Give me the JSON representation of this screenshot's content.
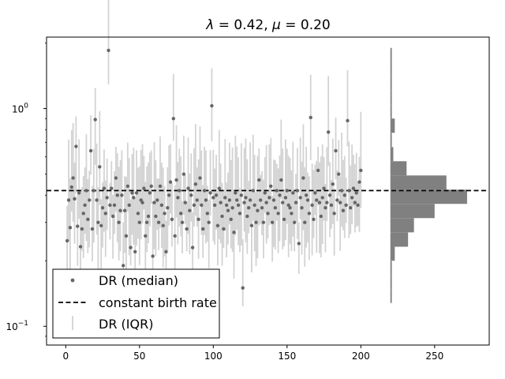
{
  "chart_data": {
    "type": "scatter",
    "title": "λ = 0.42, μ = 0.20",
    "title_parts": {
      "lambda_sym": "λ",
      "lambda_eq": " = 0.42, ",
      "mu_sym": "μ",
      "mu_eq": " = 0.20"
    },
    "xlabel": "",
    "ylabel": "",
    "x_ticks": [
      0,
      50,
      100,
      150,
      200,
      250
    ],
    "y_ticks": [
      {
        "value": 0.1,
        "base": "10",
        "exp": "−1"
      },
      {
        "value": 1.0,
        "base": "10",
        "exp": "0"
      }
    ],
    "xlim": [
      -13,
      287
    ],
    "ylim": [
      0.082,
      2.13
    ],
    "y_scale": "log",
    "grid": false,
    "legend_placement": "lower-left",
    "constant_birth_rate": 0.42,
    "colors": {
      "median_points": "#666666",
      "iqr_bars": "#d3d3d3",
      "reference_line": "#000000",
      "histogram": "#808080"
    },
    "series": [
      {
        "name": "DR (median)",
        "kind": "points",
        "x": [
          1,
          2,
          3,
          4,
          5,
          6,
          7,
          8,
          9,
          10,
          11,
          12,
          13,
          14,
          15,
          16,
          17,
          18,
          19,
          20,
          21,
          22,
          23,
          24,
          25,
          26,
          27,
          28,
          29,
          30,
          31,
          32,
          33,
          34,
          35,
          36,
          37,
          38,
          39,
          40,
          41,
          42,
          43,
          44,
          45,
          46,
          47,
          48,
          49,
          50,
          51,
          52,
          53,
          54,
          55,
          56,
          57,
          58,
          59,
          60,
          61,
          62,
          63,
          64,
          65,
          66,
          67,
          68,
          69,
          70,
          71,
          72,
          73,
          74,
          75,
          76,
          77,
          78,
          79,
          80,
          81,
          82,
          83,
          84,
          85,
          86,
          87,
          88,
          89,
          90,
          91,
          92,
          93,
          94,
          95,
          96,
          97,
          98,
          99,
          100,
          101,
          102,
          103,
          104,
          105,
          106,
          107,
          108,
          109,
          110,
          111,
          112,
          113,
          114,
          115,
          116,
          117,
          118,
          119,
          120,
          121,
          122,
          123,
          124,
          125,
          126,
          127,
          128,
          129,
          130,
          131,
          132,
          133,
          134,
          135,
          136,
          137,
          138,
          139,
          140,
          141,
          142,
          143,
          144,
          145,
          146,
          147,
          148,
          149,
          150,
          151,
          152,
          153,
          154,
          155,
          156,
          157,
          158,
          159,
          160,
          161,
          162,
          163,
          164,
          165,
          166,
          167,
          168,
          169,
          170,
          171,
          172,
          173,
          174,
          175,
          176,
          177,
          178,
          179,
          180,
          181,
          182,
          183,
          184,
          185,
          186,
          187,
          188,
          189,
          190,
          191,
          192,
          193,
          194,
          195,
          196,
          197,
          198,
          199,
          200
        ],
        "y": [
          0.247,
          0.38,
          0.284,
          0.436,
          0.48,
          0.385,
          0.67,
          0.288,
          0.41,
          0.232,
          0.28,
          0.33,
          0.36,
          0.42,
          0.31,
          0.38,
          0.64,
          0.28,
          0.42,
          0.89,
          0.38,
          0.3,
          0.54,
          0.29,
          0.35,
          0.43,
          0.33,
          0.39,
          1.85,
          0.36,
          0.43,
          0.32,
          0.36,
          0.48,
          0.4,
          0.3,
          0.34,
          0.4,
          0.19,
          0.34,
          0.26,
          0.44,
          0.36,
          0.23,
          0.41,
          0.39,
          0.22,
          0.41,
          0.33,
          0.3,
          0.38,
          0.37,
          0.43,
          0.26,
          0.3,
          0.32,
          0.41,
          0.44,
          0.21,
          0.37,
          0.32,
          0.38,
          0.3,
          0.44,
          0.36,
          0.29,
          0.33,
          0.22,
          0.35,
          0.4,
          0.46,
          0.31,
          0.9,
          0.26,
          0.47,
          0.39,
          0.42,
          0.33,
          0.3,
          0.5,
          0.37,
          0.28,
          0.43,
          0.34,
          0.4,
          0.23,
          0.36,
          0.45,
          0.38,
          0.31,
          0.48,
          0.36,
          0.28,
          0.42,
          0.38,
          0.33,
          0.3,
          0.41,
          1.03,
          0.39,
          0.36,
          0.4,
          0.29,
          0.43,
          0.37,
          0.32,
          0.28,
          0.39,
          0.36,
          0.34,
          0.38,
          0.31,
          0.35,
          0.27,
          0.41,
          0.38,
          0.36,
          0.33,
          0.4,
          0.15,
          0.37,
          0.39,
          0.32,
          0.35,
          0.38,
          0.29,
          0.42,
          0.36,
          0.3,
          0.34,
          0.47,
          0.38,
          0.35,
          0.3,
          0.41,
          0.37,
          0.33,
          0.39,
          0.44,
          0.3,
          0.38,
          0.35,
          0.42,
          0.33,
          0.4,
          0.47,
          0.37,
          0.31,
          0.39,
          0.42,
          0.36,
          0.35,
          0.33,
          0.41,
          0.3,
          0.37,
          0.42,
          0.24,
          0.39,
          0.35,
          0.48,
          0.3,
          0.4,
          0.38,
          0.33,
          0.91,
          0.36,
          0.31,
          0.41,
          0.38,
          0.52,
          0.37,
          0.32,
          0.39,
          0.43,
          0.35,
          0.37,
          0.78,
          0.4,
          0.36,
          0.45,
          0.33,
          0.64,
          0.38,
          0.5,
          0.37,
          0.42,
          0.34,
          0.4,
          0.36,
          0.88,
          0.42,
          0.35,
          0.39,
          0.43,
          0.37,
          0.41,
          0.36,
          0.46,
          0.52
        ]
      },
      {
        "name": "constant birth rate",
        "kind": "hline",
        "value": 0.42
      },
      {
        "name": "DR (IQR)",
        "kind": "errorbars"
      }
    ],
    "histogram": {
      "x_base": 220,
      "orientation": "horizontal",
      "bins": [
        {
          "lo": 0.128,
          "hi": 0.148,
          "count": 1
        },
        {
          "lo": 0.148,
          "hi": 0.172,
          "count": 1
        },
        {
          "lo": 0.172,
          "hi": 0.2,
          "count": 1
        },
        {
          "lo": 0.2,
          "hi": 0.232,
          "count": 3
        },
        {
          "lo": 0.232,
          "hi": 0.27,
          "count": 12
        },
        {
          "lo": 0.27,
          "hi": 0.314,
          "count": 16
        },
        {
          "lo": 0.314,
          "hi": 0.365,
          "count": 30
        },
        {
          "lo": 0.365,
          "hi": 0.424,
          "count": 52
        },
        {
          "lo": 0.424,
          "hi": 0.493,
          "count": 38
        },
        {
          "lo": 0.493,
          "hi": 0.573,
          "count": 11
        },
        {
          "lo": 0.573,
          "hi": 0.666,
          "count": 2
        },
        {
          "lo": 0.666,
          "hi": 0.774,
          "count": 1
        },
        {
          "lo": 0.774,
          "hi": 0.9,
          "count": 3
        },
        {
          "lo": 0.9,
          "hi": 1.046,
          "count": 1
        },
        {
          "lo": 1.046,
          "hi": 1.215,
          "count": 1
        },
        {
          "lo": 1.215,
          "hi": 1.413,
          "count": 1
        },
        {
          "lo": 1.413,
          "hi": 1.643,
          "count": 1
        },
        {
          "lo": 1.643,
          "hi": 1.9,
          "count": 1
        }
      ]
    }
  }
}
